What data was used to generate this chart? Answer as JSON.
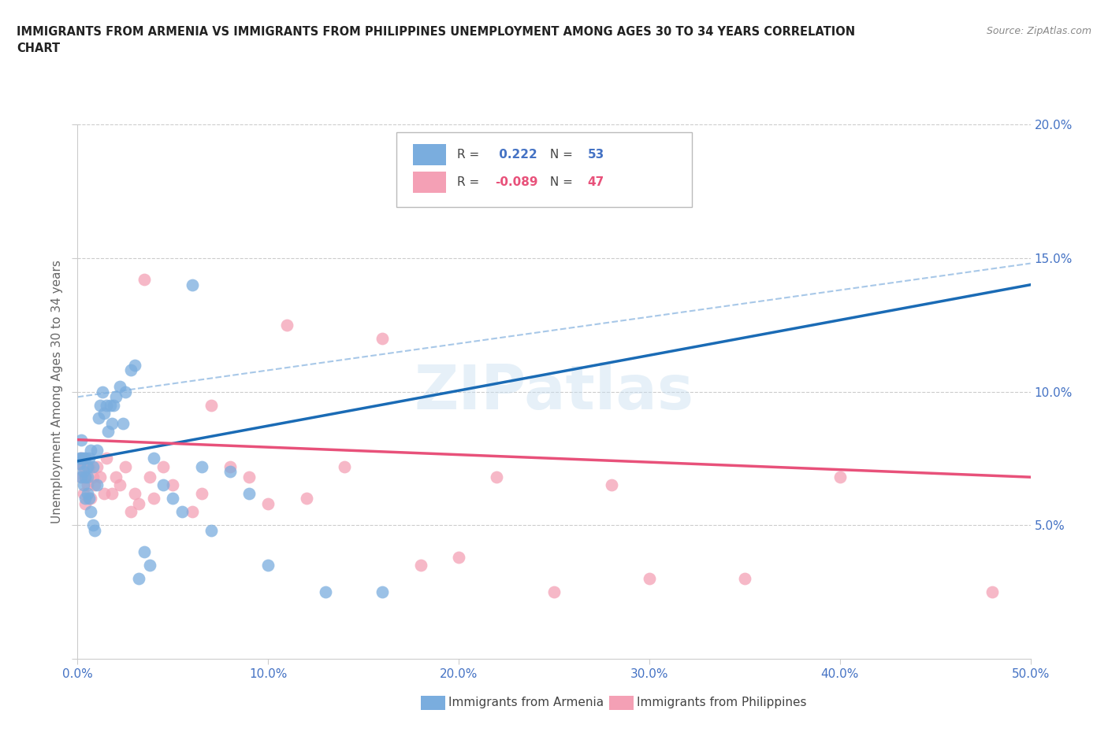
{
  "title_line1": "IMMIGRANTS FROM ARMENIA VS IMMIGRANTS FROM PHILIPPINES UNEMPLOYMENT AMONG AGES 30 TO 34 YEARS CORRELATION",
  "title_line2": "CHART",
  "source": "Source: ZipAtlas.com",
  "ylabel": "Unemployment Among Ages 30 to 34 years",
  "xlabel_armenia": "Immigrants from Armenia",
  "xlabel_philippines": "Immigrants from Philippines",
  "watermark": "ZIPatlas",
  "xlim": [
    0,
    0.5
  ],
  "ylim": [
    0,
    0.2
  ],
  "xticks": [
    0.0,
    0.1,
    0.2,
    0.3,
    0.4,
    0.5
  ],
  "yticks": [
    0.0,
    0.05,
    0.1,
    0.15,
    0.2
  ],
  "xtick_labels": [
    "0.0%",
    "10.0%",
    "20.0%",
    "30.0%",
    "40.0%",
    "50.0%"
  ],
  "ytick_labels_right": [
    "",
    "5.0%",
    "10.0%",
    "15.0%",
    "20.0%"
  ],
  "armenia_R": 0.222,
  "armenia_N": 53,
  "philippines_R": -0.089,
  "philippines_N": 47,
  "armenia_color": "#7aadde",
  "philippines_color": "#f4a0b5",
  "armenia_line_color": "#1a6bb5",
  "philippines_line_color": "#e8517a",
  "dashed_line_color": "#a8c8e8",
  "right_axis_color": "#4472c4",
  "armenia_scatter_x": [
    0.001,
    0.001,
    0.002,
    0.002,
    0.002,
    0.003,
    0.003,
    0.003,
    0.004,
    0.004,
    0.004,
    0.005,
    0.005,
    0.005,
    0.006,
    0.006,
    0.007,
    0.007,
    0.008,
    0.008,
    0.009,
    0.01,
    0.01,
    0.011,
    0.012,
    0.013,
    0.014,
    0.015,
    0.016,
    0.017,
    0.018,
    0.019,
    0.02,
    0.022,
    0.024,
    0.025,
    0.028,
    0.03,
    0.032,
    0.035,
    0.038,
    0.04,
    0.045,
    0.05,
    0.055,
    0.06,
    0.065,
    0.07,
    0.08,
    0.09,
    0.1,
    0.13,
    0.16
  ],
  "armenia_scatter_y": [
    0.073,
    0.075,
    0.068,
    0.075,
    0.082,
    0.065,
    0.07,
    0.075,
    0.06,
    0.068,
    0.075,
    0.062,
    0.068,
    0.072,
    0.06,
    0.075,
    0.055,
    0.078,
    0.05,
    0.072,
    0.048,
    0.065,
    0.078,
    0.09,
    0.095,
    0.1,
    0.092,
    0.095,
    0.085,
    0.095,
    0.088,
    0.095,
    0.098,
    0.102,
    0.088,
    0.1,
    0.108,
    0.11,
    0.03,
    0.04,
    0.035,
    0.075,
    0.065,
    0.06,
    0.055,
    0.14,
    0.072,
    0.048,
    0.07,
    0.062,
    0.035,
    0.025,
    0.025
  ],
  "philippines_scatter_x": [
    0.001,
    0.002,
    0.002,
    0.003,
    0.003,
    0.004,
    0.004,
    0.005,
    0.006,
    0.007,
    0.008,
    0.009,
    0.01,
    0.012,
    0.014,
    0.015,
    0.018,
    0.02,
    0.022,
    0.025,
    0.028,
    0.03,
    0.032,
    0.035,
    0.038,
    0.04,
    0.045,
    0.05,
    0.06,
    0.065,
    0.07,
    0.08,
    0.09,
    0.1,
    0.11,
    0.12,
    0.14,
    0.16,
    0.18,
    0.2,
    0.22,
    0.25,
    0.28,
    0.3,
    0.35,
    0.4,
    0.48
  ],
  "philippines_scatter_y": [
    0.073,
    0.068,
    0.075,
    0.062,
    0.072,
    0.058,
    0.068,
    0.065,
    0.072,
    0.06,
    0.068,
    0.065,
    0.072,
    0.068,
    0.062,
    0.075,
    0.062,
    0.068,
    0.065,
    0.072,
    0.055,
    0.062,
    0.058,
    0.142,
    0.068,
    0.06,
    0.072,
    0.065,
    0.055,
    0.062,
    0.095,
    0.072,
    0.068,
    0.058,
    0.125,
    0.06,
    0.072,
    0.12,
    0.035,
    0.038,
    0.068,
    0.025,
    0.065,
    0.03,
    0.03,
    0.068,
    0.025
  ],
  "arm_line_x0": 0.0,
  "arm_line_y0": 0.074,
  "arm_line_x1": 0.5,
  "arm_line_y1": 0.14,
  "phi_line_x0": 0.0,
  "phi_line_y0": 0.082,
  "phi_line_x1": 0.5,
  "phi_line_y1": 0.068,
  "dash_line_x0": 0.0,
  "dash_line_y0": 0.098,
  "dash_line_x1": 0.5,
  "dash_line_y1": 0.148
}
